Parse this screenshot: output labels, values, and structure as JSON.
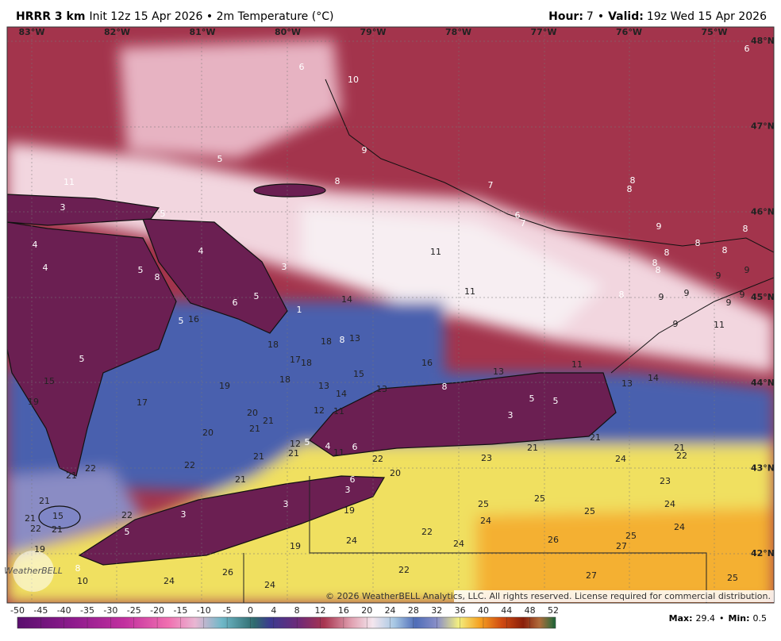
{
  "header": {
    "model": "HRRR 3 km",
    "init": "Init 12z 15 Apr 2026 • 2m Temperature (°C)",
    "hour_label": "Hour:",
    "hour": "7",
    "separator": "•",
    "valid_label": "Valid:",
    "valid": "19z Wed 15 Apr 2026"
  },
  "map": {
    "longitudes": [
      "83°W",
      "82°W",
      "81°W",
      "80°W",
      "79°W",
      "78°W",
      "77°W",
      "76°W",
      "75°W"
    ],
    "latitudes": [
      "48°N",
      "47°N",
      "46°N",
      "45°N",
      "44°N",
      "43°N",
      "42°N"
    ],
    "values": [
      6,
      6,
      10,
      9,
      5,
      11,
      8,
      7,
      8,
      8,
      3,
      5,
      6,
      7,
      9,
      8,
      8,
      4,
      4,
      11,
      8,
      8,
      8,
      4,
      5,
      8,
      9,
      9,
      8,
      3,
      11,
      5,
      6,
      14,
      8,
      9,
      9,
      9,
      9,
      1,
      5,
      16,
      9,
      11,
      18,
      18,
      8,
      13,
      5,
      17,
      18,
      16,
      15,
      13,
      11,
      15,
      18,
      8,
      14,
      13,
      19,
      13,
      14,
      13,
      19,
      17,
      20,
      21,
      12,
      11,
      3,
      5,
      5,
      20,
      21,
      12,
      5,
      4,
      6,
      11,
      21,
      21,
      21,
      21,
      22,
      21,
      22,
      23,
      24,
      22,
      22,
      20,
      21,
      21,
      6,
      23,
      3,
      21,
      3,
      25,
      25,
      24,
      15,
      22,
      3,
      19,
      24,
      25,
      21,
      21,
      22,
      5,
      22,
      24,
      25,
      24,
      24,
      26,
      27,
      19,
      19,
      8,
      26,
      22,
      27,
      25,
      10,
      24,
      24
    ],
    "copyright": "© 2026 WeatherBELL Analytics, LLC. All rights reserved. License required for commercial distribution.",
    "logo": "WeatherBELL"
  },
  "colorbar": {
    "ticks": [
      -50,
      -45,
      -40,
      -35,
      -30,
      -25,
      -20,
      -15,
      -10,
      -5,
      0,
      4,
      8,
      12,
      16,
      20,
      24,
      28,
      32,
      36,
      40,
      44,
      48,
      52
    ]
  },
  "footer": {
    "max_label": "Max:",
    "max": 29.4,
    "separator": "•",
    "min_label": "Min:",
    "min": 0.5
  }
}
